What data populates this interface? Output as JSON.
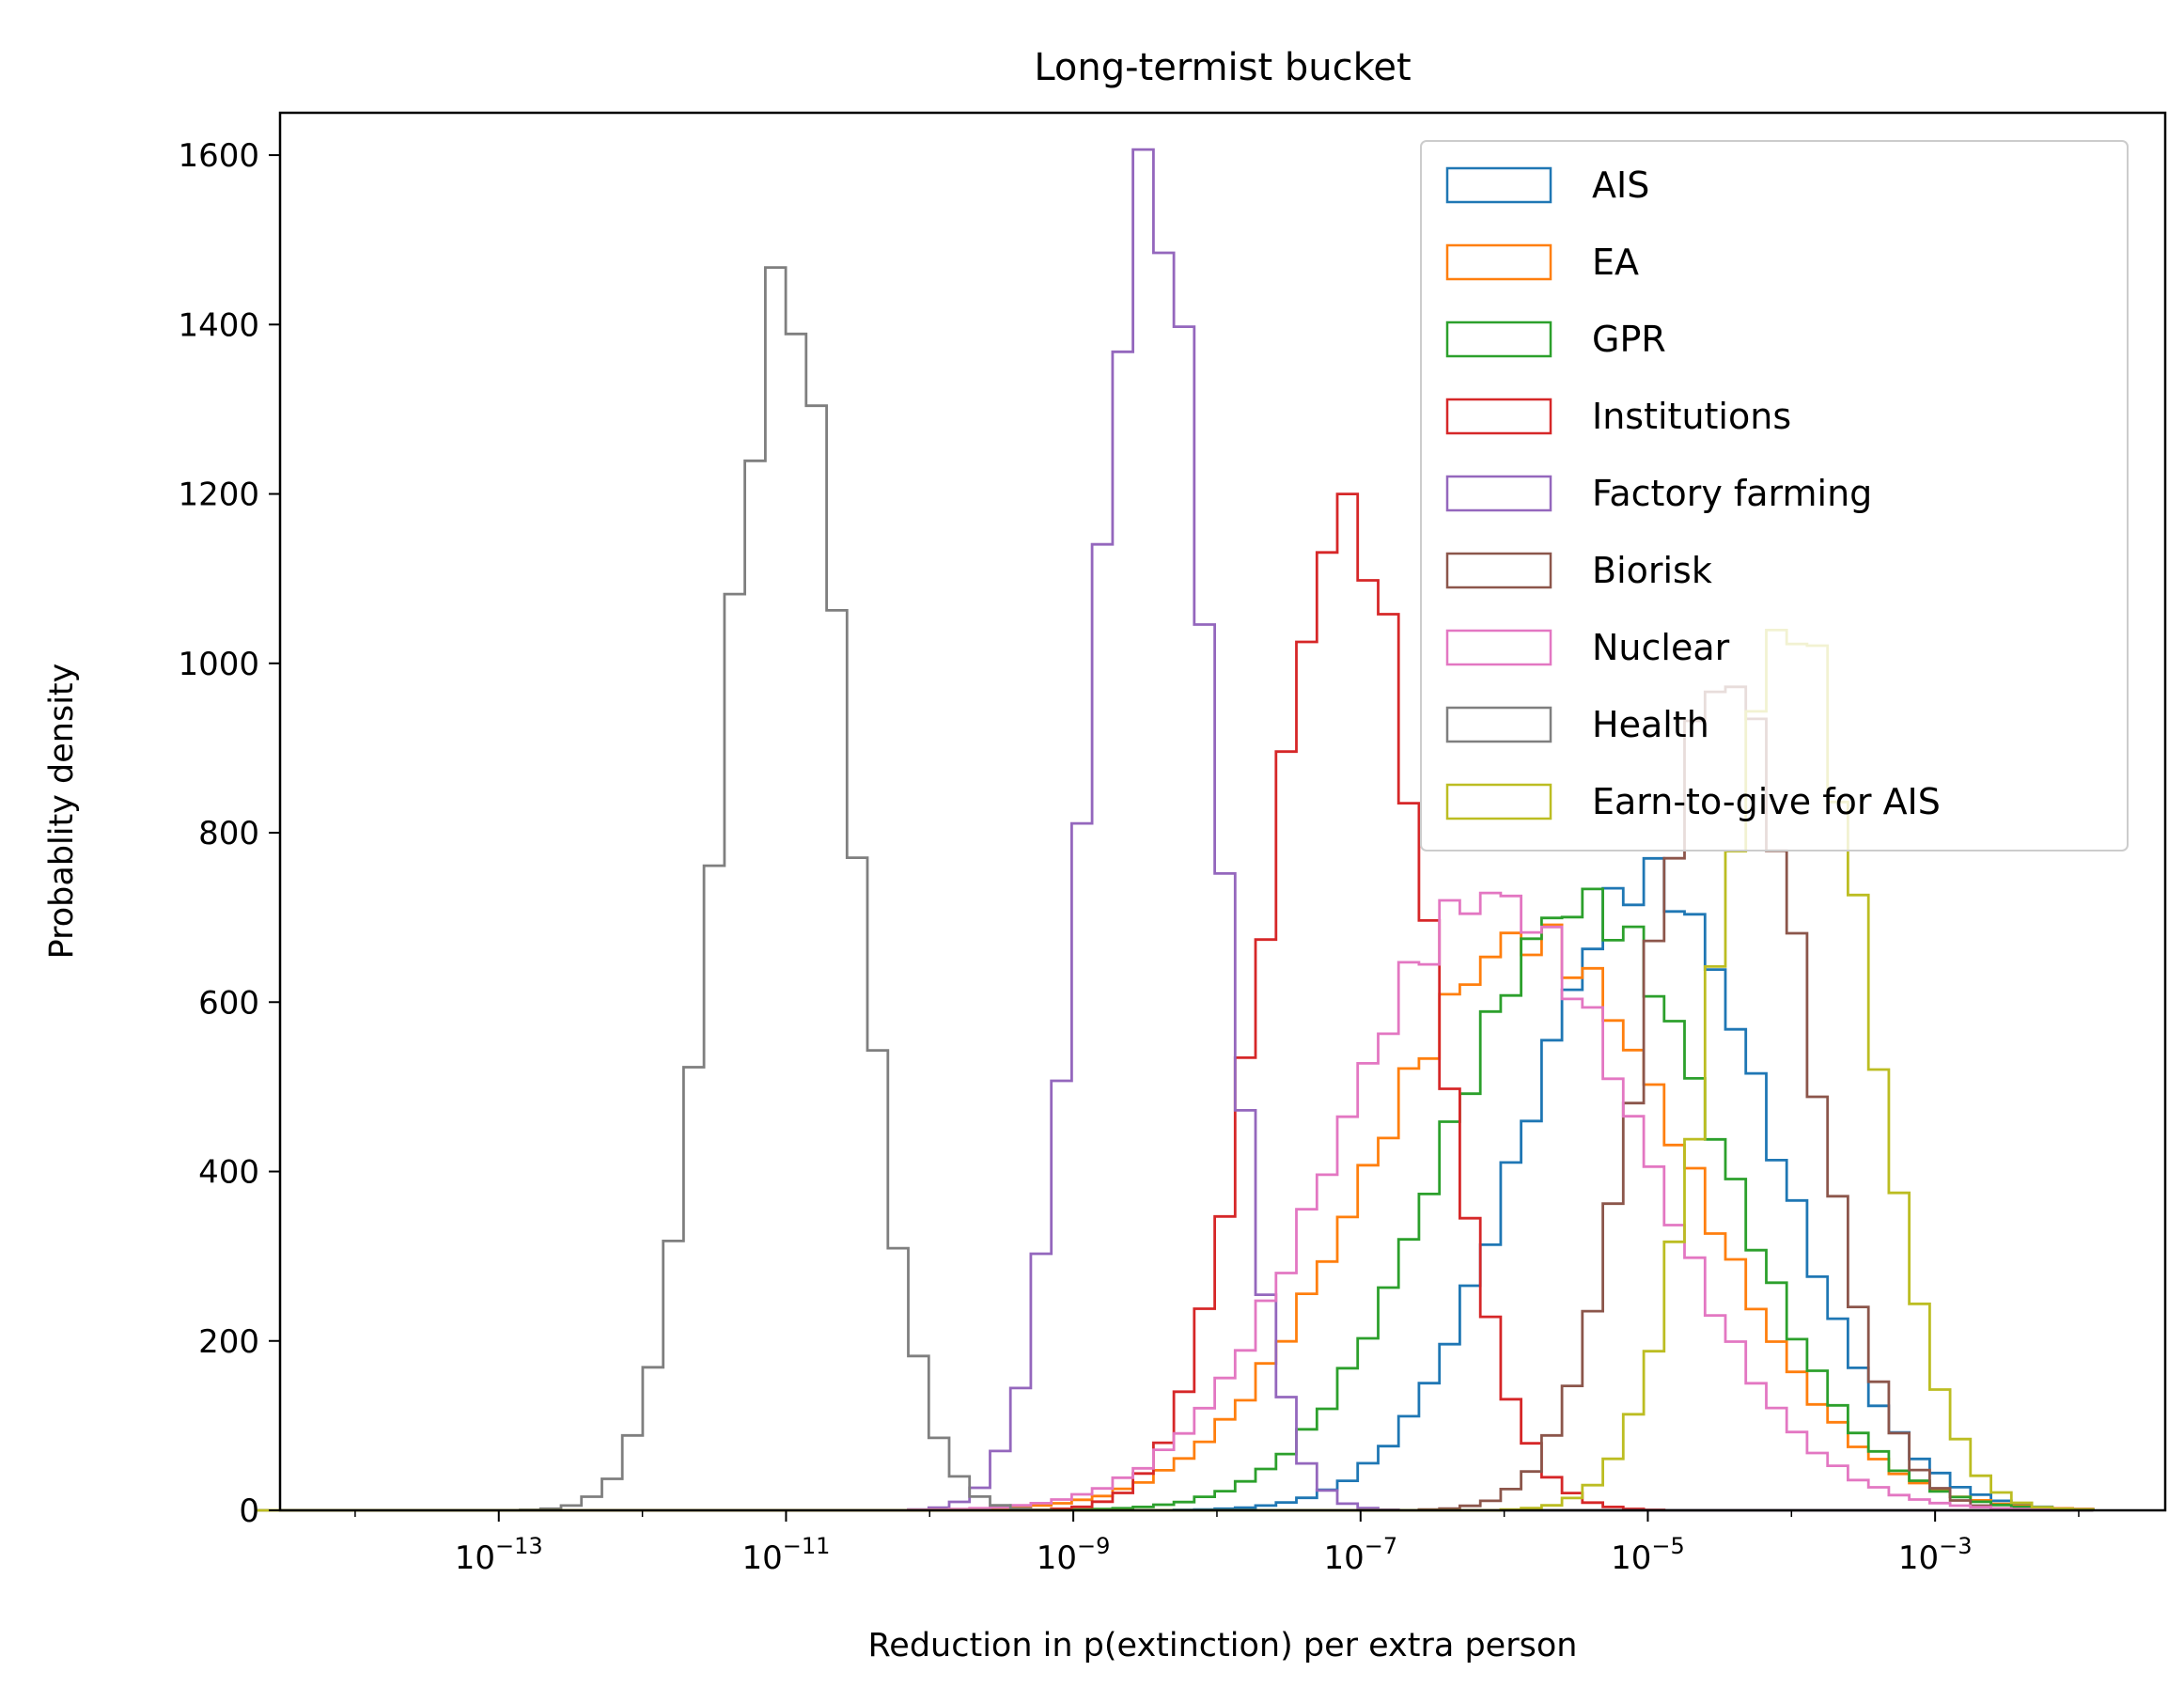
{
  "chart_data": {
    "type": "histogram",
    "title": "Long-termist bucket",
    "xlabel": "Reduction in p(extinction) per extra person",
    "ylabel": "Probablity density",
    "x_scale": "log",
    "xlim": [
      3e-15,
      0.04
    ],
    "ylim": [
      0,
      1650
    ],
    "x_ticks": [
      {
        "value": 1e-13,
        "base": "10",
        "exp": "−13"
      },
      {
        "value": 1e-11,
        "base": "10",
        "exp": "−11"
      },
      {
        "value": 1e-09,
        "base": "10",
        "exp": "−9"
      },
      {
        "value": 1e-07,
        "base": "10",
        "exp": "−7"
      },
      {
        "value": 1e-05,
        "base": "10",
        "exp": "−5"
      },
      {
        "value": 0.001,
        "base": "10",
        "exp": "−3"
      }
    ],
    "y_ticks": [
      {
        "value": 0,
        "label": "0"
      },
      {
        "value": 200,
        "label": "200"
      },
      {
        "value": 400,
        "label": "400"
      },
      {
        "value": 600,
        "label": "600"
      },
      {
        "value": 800,
        "label": "800"
      },
      {
        "value": 1000,
        "label": "1000"
      },
      {
        "value": 1200,
        "label": "1200"
      },
      {
        "value": 1400,
        "label": "1400"
      },
      {
        "value": 1600,
        "label": "1600"
      }
    ],
    "grid": false,
    "legend_position": "top-right",
    "series": [
      {
        "name": "AIS",
        "color": "#1f77b4",
        "peak_x": 1e-05,
        "peak_y": 745,
        "sigma_decades": 0.85
      },
      {
        "name": "EA",
        "color": "#ff7f0e",
        "peak_x": 1.5e-06,
        "peak_y": 675,
        "sigma_decades": 1.1
      },
      {
        "name": "GPR",
        "color": "#2ca02c",
        "peak_x": 3.5e-06,
        "peak_y": 715,
        "sigma_decades": 0.95
      },
      {
        "name": "Institutions",
        "color": "#d62728",
        "peak_x": 8e-08,
        "peak_y": 1175,
        "sigma_decades": 0.55
      },
      {
        "name": "Factory farming",
        "color": "#9467bd",
        "peak_x": 3.5e-09,
        "peak_y": 1570,
        "sigma_decades": 0.42
      },
      {
        "name": "Biorisk",
        "color": "#8c564b",
        "peak_x": 3.5e-05,
        "peak_y": 985,
        "sigma_decades": 0.55
      },
      {
        "name": "Nuclear",
        "color": "#e377c2",
        "peak_x": 8e-07,
        "peak_y": 725,
        "sigma_decades": 1.05
      },
      {
        "name": "Health",
        "color": "#7f7f7f",
        "peak_x": 1e-11,
        "peak_y": 1440,
        "sigma_decades": 0.45
      },
      {
        "name": "Earn-to-give for AIS",
        "color": "#bcbd22",
        "peak_x": 0.0001,
        "peak_y": 1050,
        "sigma_decades": 0.52
      }
    ]
  }
}
